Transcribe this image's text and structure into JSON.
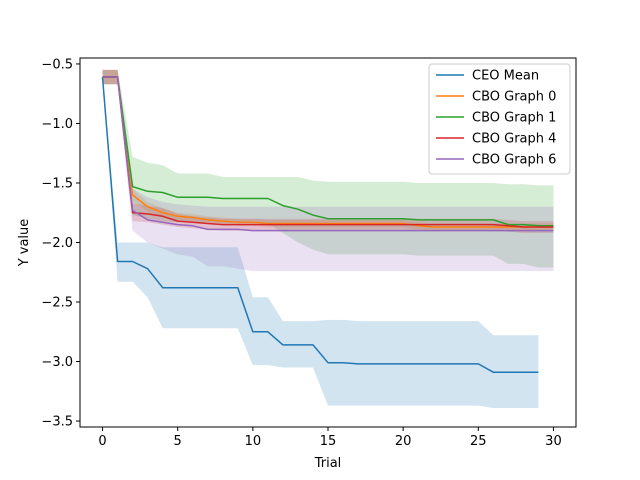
{
  "chart_data": {
    "type": "line",
    "title": "",
    "xlabel": "Trial",
    "ylabel": "Y value",
    "xlim": [
      -1.5,
      31.5
    ],
    "ylim": [
      -3.55,
      -0.45
    ],
    "xticks": [
      0,
      5,
      10,
      15,
      20,
      25,
      30
    ],
    "yticks": [
      -3.5,
      -3.0,
      -2.5,
      -2.0,
      -1.5,
      -1.0,
      -0.5
    ],
    "xtick_labels": [
      "0",
      "5",
      "10",
      "15",
      "20",
      "25",
      "30"
    ],
    "ytick_labels": [
      "−3.5",
      "−3.0",
      "−2.5",
      "−2.0",
      "−1.5",
      "−1.0",
      "−0.5"
    ],
    "grid": false,
    "legend_position": "top-right",
    "series": [
      {
        "name": "CEO Mean",
        "color": "#1f77b4",
        "x": [
          0,
          1,
          2,
          3,
          4,
          5,
          6,
          7,
          8,
          9,
          10,
          11,
          12,
          13,
          14,
          15,
          16,
          17,
          18,
          19,
          20,
          21,
          22,
          23,
          24,
          25,
          26,
          27,
          28,
          29
        ],
        "values": [
          -0.61,
          -2.16,
          -2.16,
          -2.22,
          -2.38,
          -2.38,
          -2.38,
          -2.38,
          -2.38,
          -2.38,
          -2.75,
          -2.75,
          -2.86,
          -2.86,
          -2.86,
          -3.01,
          -3.01,
          -3.02,
          -3.02,
          -3.02,
          -3.02,
          -3.02,
          -3.02,
          -3.02,
          -3.02,
          -3.02,
          -3.09,
          -3.09,
          -3.09,
          -3.09
        ],
        "upper": [
          -0.61,
          -2.0,
          -2.0,
          -2.0,
          -2.04,
          -2.04,
          -2.04,
          -2.04,
          -2.04,
          -2.04,
          -2.46,
          -2.46,
          -2.66,
          -2.66,
          -2.66,
          -2.65,
          -2.65,
          -2.66,
          -2.66,
          -2.66,
          -2.66,
          -2.66,
          -2.66,
          -2.66,
          -2.66,
          -2.66,
          -2.78,
          -2.78,
          -2.78,
          -2.78
        ],
        "lower": [
          -0.61,
          -2.33,
          -2.33,
          -2.46,
          -2.72,
          -2.72,
          -2.72,
          -2.72,
          -2.72,
          -2.72,
          -3.03,
          -3.03,
          -3.05,
          -3.05,
          -3.05,
          -3.37,
          -3.37,
          -3.37,
          -3.37,
          -3.37,
          -3.37,
          -3.37,
          -3.37,
          -3.37,
          -3.37,
          -3.37,
          -3.39,
          -3.39,
          -3.39,
          -3.39
        ]
      },
      {
        "name": "CBO Graph 0",
        "color": "#ff7f0e",
        "x": [
          0,
          1,
          2,
          3,
          4,
          5,
          6,
          7,
          8,
          9,
          10,
          11,
          12,
          13,
          14,
          15,
          16,
          17,
          18,
          19,
          20,
          21,
          22,
          23,
          24,
          25,
          26,
          27,
          28,
          29,
          30
        ],
        "values": [
          -0.61,
          -0.61,
          -1.6,
          -1.7,
          -1.75,
          -1.78,
          -1.79,
          -1.81,
          -1.82,
          -1.83,
          -1.83,
          -1.84,
          -1.84,
          -1.84,
          -1.84,
          -1.84,
          -1.84,
          -1.84,
          -1.84,
          -1.84,
          -1.84,
          -1.86,
          -1.87,
          -1.87,
          -1.87,
          -1.87,
          -1.87,
          -1.87,
          -1.87,
          -1.87,
          -1.87
        ],
        "upper": [
          -0.55,
          -0.55,
          -1.55,
          -1.66,
          -1.71,
          -1.75,
          -1.76,
          -1.78,
          -1.79,
          -1.8,
          -1.8,
          -1.81,
          -1.81,
          -1.81,
          -1.81,
          -1.81,
          -1.81,
          -1.81,
          -1.81,
          -1.81,
          -1.81,
          -1.83,
          -1.84,
          -1.84,
          -1.84,
          -1.84,
          -1.84,
          -1.84,
          -1.84,
          -1.84,
          -1.84
        ],
        "lower": [
          -0.67,
          -0.67,
          -1.65,
          -1.74,
          -1.79,
          -1.81,
          -1.82,
          -1.84,
          -1.85,
          -1.86,
          -1.86,
          -1.87,
          -1.87,
          -1.87,
          -1.87,
          -1.87,
          -1.87,
          -1.87,
          -1.87,
          -1.87,
          -1.87,
          -1.89,
          -1.9,
          -1.9,
          -1.9,
          -1.9,
          -1.9,
          -1.9,
          -1.9,
          -1.9,
          -1.9
        ]
      },
      {
        "name": "CBO Graph 1",
        "color": "#2ca02c",
        "x": [
          0,
          1,
          2,
          3,
          4,
          5,
          6,
          7,
          8,
          9,
          10,
          11,
          12,
          13,
          14,
          15,
          16,
          17,
          18,
          19,
          20,
          21,
          22,
          23,
          24,
          25,
          26,
          27,
          28,
          29,
          30
        ],
        "values": [
          -0.61,
          -0.61,
          -1.53,
          -1.57,
          -1.58,
          -1.62,
          -1.62,
          -1.62,
          -1.63,
          -1.63,
          -1.63,
          -1.63,
          -1.69,
          -1.72,
          -1.77,
          -1.8,
          -1.8,
          -1.8,
          -1.8,
          -1.8,
          -1.8,
          -1.81,
          -1.81,
          -1.81,
          -1.81,
          -1.81,
          -1.81,
          -1.85,
          -1.85,
          -1.86,
          -1.86
        ],
        "upper": [
          -0.55,
          -0.55,
          -1.28,
          -1.33,
          -1.35,
          -1.42,
          -1.42,
          -1.42,
          -1.45,
          -1.45,
          -1.45,
          -1.45,
          -1.45,
          -1.45,
          -1.48,
          -1.49,
          -1.49,
          -1.49,
          -1.49,
          -1.49,
          -1.49,
          -1.5,
          -1.5,
          -1.5,
          -1.5,
          -1.5,
          -1.5,
          -1.51,
          -1.51,
          -1.52,
          -1.52
        ],
        "lower": [
          -0.67,
          -0.67,
          -1.77,
          -1.8,
          -1.82,
          -1.83,
          -1.83,
          -1.83,
          -1.84,
          -1.84,
          -1.84,
          -1.84,
          -1.92,
          -2.0,
          -2.06,
          -2.1,
          -2.1,
          -2.1,
          -2.1,
          -2.1,
          -2.1,
          -2.11,
          -2.11,
          -2.11,
          -2.11,
          -2.11,
          -2.11,
          -2.18,
          -2.18,
          -2.21,
          -2.21
        ]
      },
      {
        "name": "CBO Graph 4",
        "color": "#d62728",
        "x": [
          0,
          1,
          2,
          3,
          4,
          5,
          6,
          7,
          8,
          9,
          10,
          11,
          12,
          13,
          14,
          15,
          16,
          17,
          18,
          19,
          20,
          21,
          22,
          23,
          24,
          25,
          26,
          27,
          28,
          29,
          30
        ],
        "values": [
          -0.61,
          -0.61,
          -1.75,
          -1.76,
          -1.78,
          -1.82,
          -1.83,
          -1.84,
          -1.85,
          -1.85,
          -1.85,
          -1.85,
          -1.85,
          -1.85,
          -1.85,
          -1.85,
          -1.85,
          -1.85,
          -1.85,
          -1.85,
          -1.85,
          -1.85,
          -1.85,
          -1.85,
          -1.85,
          -1.85,
          -1.85,
          -1.86,
          -1.87,
          -1.87,
          -1.87
        ],
        "upper": [
          -0.55,
          -0.55,
          -1.67,
          -1.69,
          -1.71,
          -1.76,
          -1.78,
          -1.79,
          -1.8,
          -1.8,
          -1.8,
          -1.8,
          -1.8,
          -1.8,
          -1.8,
          -1.8,
          -1.8,
          -1.8,
          -1.8,
          -1.8,
          -1.8,
          -1.8,
          -1.8,
          -1.8,
          -1.8,
          -1.8,
          -1.8,
          -1.81,
          -1.82,
          -1.82,
          -1.82
        ],
        "lower": [
          -0.67,
          -0.67,
          -1.82,
          -1.83,
          -1.85,
          -1.87,
          -1.88,
          -1.89,
          -1.9,
          -1.9,
          -1.9,
          -1.9,
          -1.9,
          -1.9,
          -1.9,
          -1.9,
          -1.9,
          -1.9,
          -1.9,
          -1.9,
          -1.9,
          -1.9,
          -1.9,
          -1.9,
          -1.9,
          -1.9,
          -1.9,
          -1.91,
          -1.92,
          -1.92,
          -1.92
        ]
      },
      {
        "name": "CBO Graph 6",
        "color": "#9467bd",
        "x": [
          0,
          1,
          2,
          3,
          4,
          5,
          6,
          7,
          8,
          9,
          10,
          11,
          12,
          13,
          14,
          15,
          16,
          17,
          18,
          19,
          20,
          21,
          22,
          23,
          24,
          25,
          26,
          27,
          28,
          29,
          30
        ],
        "values": [
          -0.61,
          -0.61,
          -1.73,
          -1.81,
          -1.83,
          -1.85,
          -1.86,
          -1.89,
          -1.89,
          -1.89,
          -1.9,
          -1.9,
          -1.9,
          -1.9,
          -1.9,
          -1.9,
          -1.9,
          -1.9,
          -1.9,
          -1.9,
          -1.9,
          -1.9,
          -1.9,
          -1.9,
          -1.9,
          -1.9,
          -1.9,
          -1.9,
          -1.9,
          -1.9,
          -1.9
        ],
        "upper": [
          -0.55,
          -0.55,
          -1.55,
          -1.62,
          -1.66,
          -1.68,
          -1.69,
          -1.7,
          -1.7,
          -1.7,
          -1.7,
          -1.7,
          -1.7,
          -1.7,
          -1.7,
          -1.7,
          -1.7,
          -1.7,
          -1.7,
          -1.7,
          -1.7,
          -1.7,
          -1.7,
          -1.7,
          -1.7,
          -1.7,
          -1.7,
          -1.7,
          -1.7,
          -1.7,
          -1.7
        ],
        "lower": [
          -0.67,
          -0.67,
          -1.9,
          -2.0,
          -2.05,
          -2.1,
          -2.12,
          -2.2,
          -2.2,
          -2.22,
          -2.24,
          -2.24,
          -2.24,
          -2.24,
          -2.24,
          -2.24,
          -2.24,
          -2.24,
          -2.24,
          -2.24,
          -2.24,
          -2.24,
          -2.24,
          -2.24,
          -2.24,
          -2.24,
          -2.24,
          -2.24,
          -2.24,
          -2.24,
          -2.24
        ]
      }
    ]
  }
}
